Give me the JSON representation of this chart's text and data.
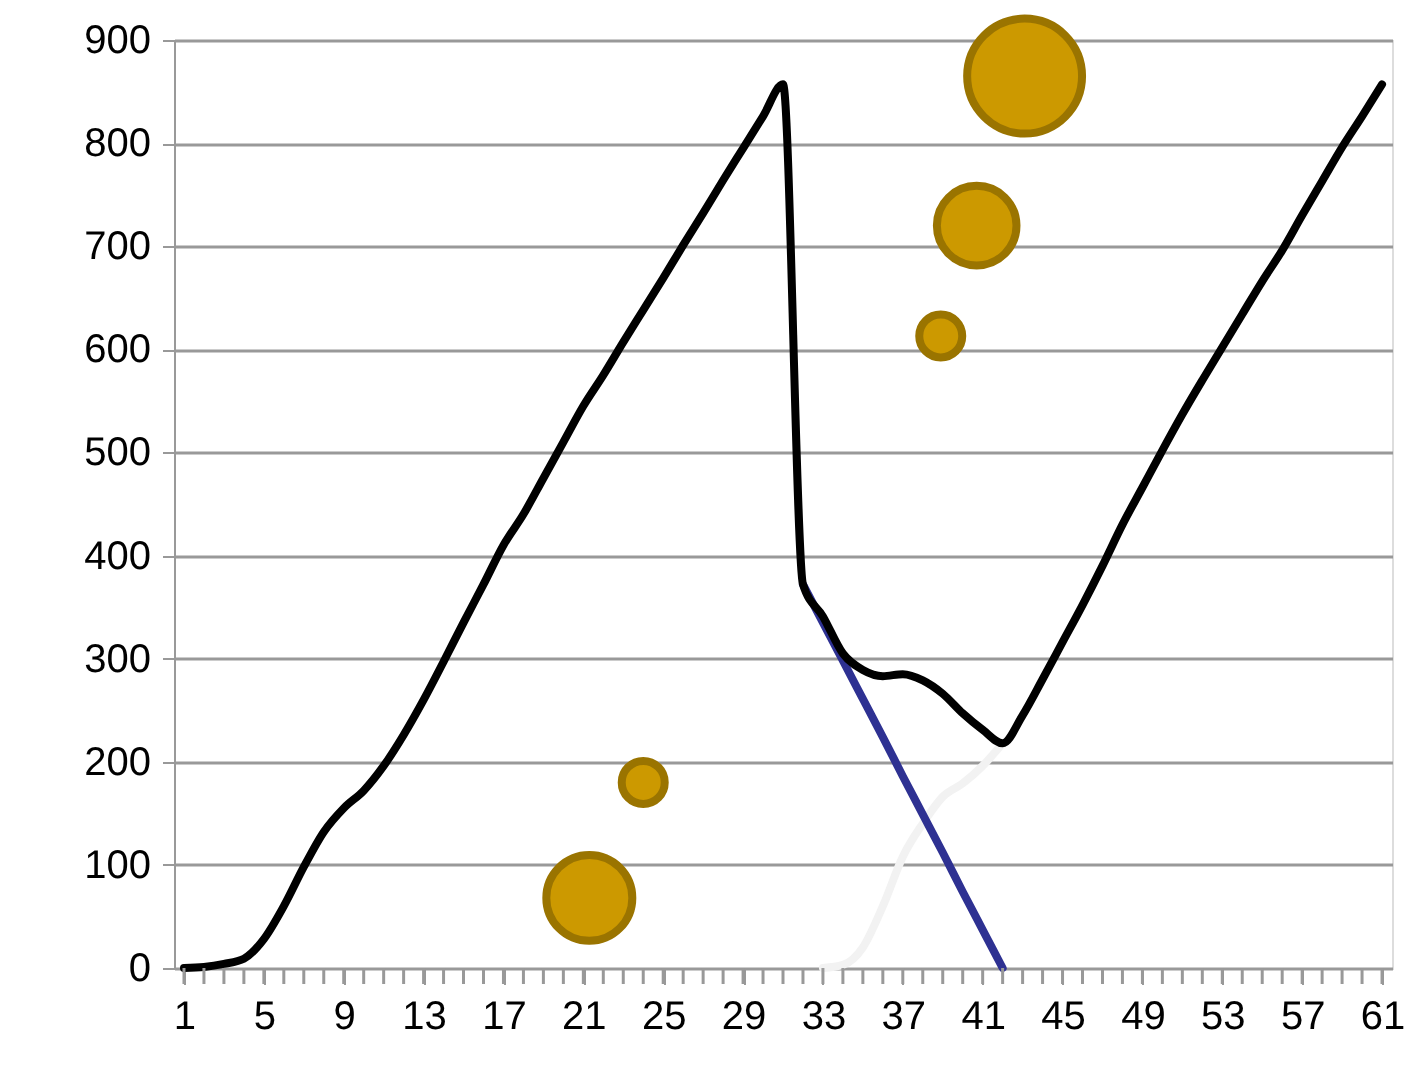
{
  "chart_data": {
    "type": "line",
    "x": [
      1,
      2,
      3,
      4,
      5,
      6,
      7,
      8,
      9,
      10,
      11,
      12,
      13,
      14,
      15,
      16,
      17,
      18,
      19,
      20,
      21,
      22,
      23,
      24,
      25,
      26,
      27,
      28,
      29,
      30,
      31,
      32,
      33,
      34,
      35,
      36,
      37,
      38,
      39,
      40,
      41,
      42,
      43,
      44,
      45,
      46,
      47,
      48,
      49,
      50,
      51,
      52,
      53,
      54,
      55,
      56,
      57,
      58,
      59,
      60,
      61
    ],
    "xlim": [
      0.5,
      61.5
    ],
    "xticks": [
      1,
      {
        "value": 2,
        "label": null
      },
      {
        "value": 3,
        "label": null
      },
      {
        "value": 4,
        "label": null
      },
      5,
      {
        "value": 6,
        "label": null
      },
      {
        "value": 7,
        "label": null
      },
      {
        "value": 8,
        "label": null
      },
      9,
      {
        "value": 10,
        "label": null
      },
      {
        "value": 11,
        "label": null
      },
      {
        "value": 12,
        "label": null
      },
      13,
      {
        "value": 14,
        "label": null
      },
      {
        "value": 15,
        "label": null
      },
      {
        "value": 16,
        "label": null
      },
      17,
      {
        "value": 18,
        "label": null
      },
      {
        "value": 19,
        "label": null
      },
      {
        "value": 20,
        "label": null
      },
      21,
      {
        "value": 22,
        "label": null
      },
      {
        "value": 23,
        "label": null
      },
      {
        "value": 24,
        "label": null
      },
      25,
      {
        "value": 26,
        "label": null
      },
      {
        "value": 27,
        "label": null
      },
      {
        "value": 28,
        "label": null
      },
      29,
      {
        "value": 30,
        "label": null
      },
      {
        "value": 31,
        "label": null
      },
      {
        "value": 32,
        "label": null
      },
      33,
      {
        "value": 34,
        "label": null
      },
      {
        "value": 35,
        "label": null
      },
      {
        "value": 36,
        "label": null
      },
      37,
      {
        "value": 38,
        "label": null
      },
      {
        "value": 39,
        "label": null
      },
      {
        "value": 40,
        "label": null
      },
      41,
      {
        "value": 42,
        "label": null
      },
      {
        "value": 43,
        "label": null
      },
      {
        "value": 44,
        "label": null
      },
      45,
      {
        "value": 46,
        "label": null
      },
      {
        "value": 47,
        "label": null
      },
      {
        "value": 48,
        "label": null
      },
      49,
      {
        "value": 50,
        "label": null
      },
      {
        "value": 51,
        "label": null
      },
      {
        "value": 52,
        "label": null
      },
      53,
      {
        "value": 54,
        "label": null
      },
      {
        "value": 55,
        "label": null
      },
      {
        "value": 56,
        "label": null
      },
      57,
      {
        "value": 58,
        "label": null
      },
      {
        "value": 59,
        "label": null
      },
      {
        "value": 60,
        "label": null
      },
      61
    ],
    "ylim": [
      0,
      900
    ],
    "yticks": [
      0,
      100,
      200,
      300,
      400,
      500,
      600,
      700,
      800,
      900
    ],
    "grid": "y",
    "line_style": "solid",
    "series": [
      {
        "color": "#f2f2f2",
        "values": [
          null,
          null,
          null,
          null,
          null,
          null,
          null,
          null,
          null,
          null,
          null,
          null,
          null,
          null,
          null,
          null,
          null,
          null,
          null,
          null,
          null,
          null,
          null,
          null,
          null,
          null,
          null,
          null,
          null,
          null,
          null,
          null,
          0,
          3,
          20,
          60,
          108,
          140,
          166,
          179,
          196,
          218,
          null,
          null,
          null,
          null,
          null,
          null,
          null,
          null,
          null,
          null,
          null,
          null,
          null,
          null,
          null,
          null,
          null,
          null,
          null
        ]
      },
      {
        "color": "#2e3192",
        "values": [
          null,
          null,
          null,
          null,
          null,
          null,
          null,
          null,
          null,
          null,
          null,
          null,
          null,
          null,
          null,
          null,
          null,
          null,
          null,
          null,
          null,
          null,
          null,
          null,
          null,
          null,
          null,
          null,
          null,
          null,
          null,
          372,
          335,
          298,
          261,
          224,
          186,
          149,
          112,
          74,
          37,
          0,
          null,
          null,
          null,
          null,
          null,
          null,
          null,
          null,
          null,
          null,
          null,
          null,
          null,
          null,
          null,
          null,
          null,
          null,
          null
        ]
      },
      {
        "color": "#000000",
        "values": [
          0,
          1,
          4,
          9,
          28,
          60,
          98,
          132,
          155,
          172,
          196,
          226,
          260,
          297,
          335,
          372,
          410,
          440,
          475,
          510,
          545,
          575,
          607,
          638,
          669,
          701,
          732,
          764,
          795,
          826,
          857,
          372,
          341,
          305,
          289,
          283,
          285,
          279,
          266,
          247,
          231,
          218,
          245,
          280,
          316,
          352,
          390,
          430,
          466,
          502,
          537,
          570,
          602,
          634,
          666,
          696,
          730,
          763,
          796,
          826,
          857
        ]
      },
      {
        "type": "bubble",
        "color": "#cc9900",
        "x": [
          21.3,
          24,
          38.9,
          40.7,
          43.1
        ],
        "values": [
          68,
          180,
          613,
          720,
          865
        ],
        "sizes": [
          0.56,
          0.14,
          0.14,
          0.48,
          1
        ]
      }
    ]
  }
}
